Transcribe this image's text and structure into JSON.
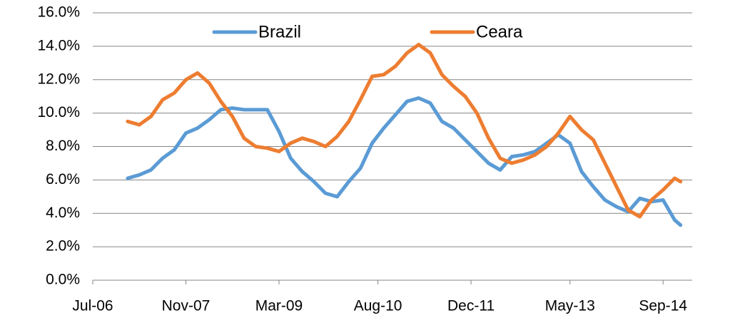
{
  "chart_data": {
    "type": "line",
    "x": [
      "Jan-07",
      "Mar-07",
      "May-07",
      "Jul-07",
      "Sep-07",
      "Nov-07",
      "Jan-08",
      "Mar-08",
      "May-08",
      "Jul-08",
      "Sep-08",
      "Nov-08",
      "Jan-09",
      "Mar-09",
      "May-09",
      "Jul-09",
      "Sep-09",
      "Nov-09",
      "Jan-10",
      "Mar-10",
      "May-10",
      "Jul-10",
      "Sep-10",
      "Nov-10",
      "Jan-11",
      "Mar-11",
      "May-11",
      "Jul-11",
      "Sep-11",
      "Nov-11",
      "Jan-12",
      "Mar-12",
      "May-12",
      "Jul-12",
      "Sep-12",
      "Nov-12",
      "Jan-13",
      "Mar-13",
      "May-13",
      "Jul-13",
      "Sep-13",
      "Nov-13",
      "Jan-14",
      "Mar-14",
      "May-14",
      "Jul-14",
      "Sep-14",
      "Nov-14",
      "Dec-14"
    ],
    "series": [
      {
        "name": "Brazil",
        "color": "#5b9bd5",
        "values": [
          6.1,
          6.3,
          6.6,
          7.3,
          7.8,
          8.8,
          9.1,
          9.6,
          10.2,
          10.3,
          10.2,
          10.2,
          10.2,
          8.9,
          7.3,
          6.5,
          5.9,
          5.2,
          5.0,
          5.9,
          6.7,
          8.2,
          9.1,
          9.9,
          10.7,
          10.9,
          10.6,
          9.5,
          9.1,
          8.4,
          7.7,
          7.0,
          6.6,
          7.4,
          7.5,
          7.7,
          8.2,
          8.7,
          8.2,
          6.5,
          5.6,
          4.8,
          4.4,
          4.1,
          4.9,
          4.7,
          4.8,
          3.6,
          3.3
        ]
      },
      {
        "name": "Ceara",
        "color": "#ed7d31",
        "values": [
          9.5,
          9.3,
          9.8,
          10.8,
          11.2,
          12.0,
          12.4,
          11.8,
          10.7,
          9.8,
          8.5,
          8.0,
          7.9,
          7.7,
          8.2,
          8.5,
          8.3,
          8.0,
          8.6,
          9.5,
          10.8,
          12.2,
          12.3,
          12.8,
          13.6,
          14.1,
          13.6,
          12.3,
          11.6,
          11.0,
          10.0,
          8.5,
          7.3,
          7.0,
          7.2,
          7.5,
          8.0,
          8.8,
          9.8,
          9.0,
          8.4,
          7.0,
          5.6,
          4.2,
          3.8,
          4.8,
          5.4,
          6.1,
          5.9
        ]
      }
    ],
    "xlim": [
      "Jul-06",
      "Feb-15"
    ],
    "xticks": [
      "Jul-06",
      "Nov-07",
      "Mar-09",
      "Aug-10",
      "Dec-11",
      "May-13",
      "Sep-14"
    ],
    "ylim": [
      0,
      16
    ],
    "yticks": [
      {
        "value": 0,
        "label": "0.0%"
      },
      {
        "value": 2,
        "label": "2.0%"
      },
      {
        "value": 4,
        "label": "4.0%"
      },
      {
        "value": 6,
        "label": "6.0%"
      },
      {
        "value": 8,
        "label": "8.0%"
      },
      {
        "value": 10,
        "label": "10.0%"
      },
      {
        "value": 12,
        "label": "12.0%"
      },
      {
        "value": 14,
        "label": "14.0%"
      },
      {
        "value": 16,
        "label": "16.0%"
      }
    ],
    "grid": true,
    "legend": "top"
  }
}
